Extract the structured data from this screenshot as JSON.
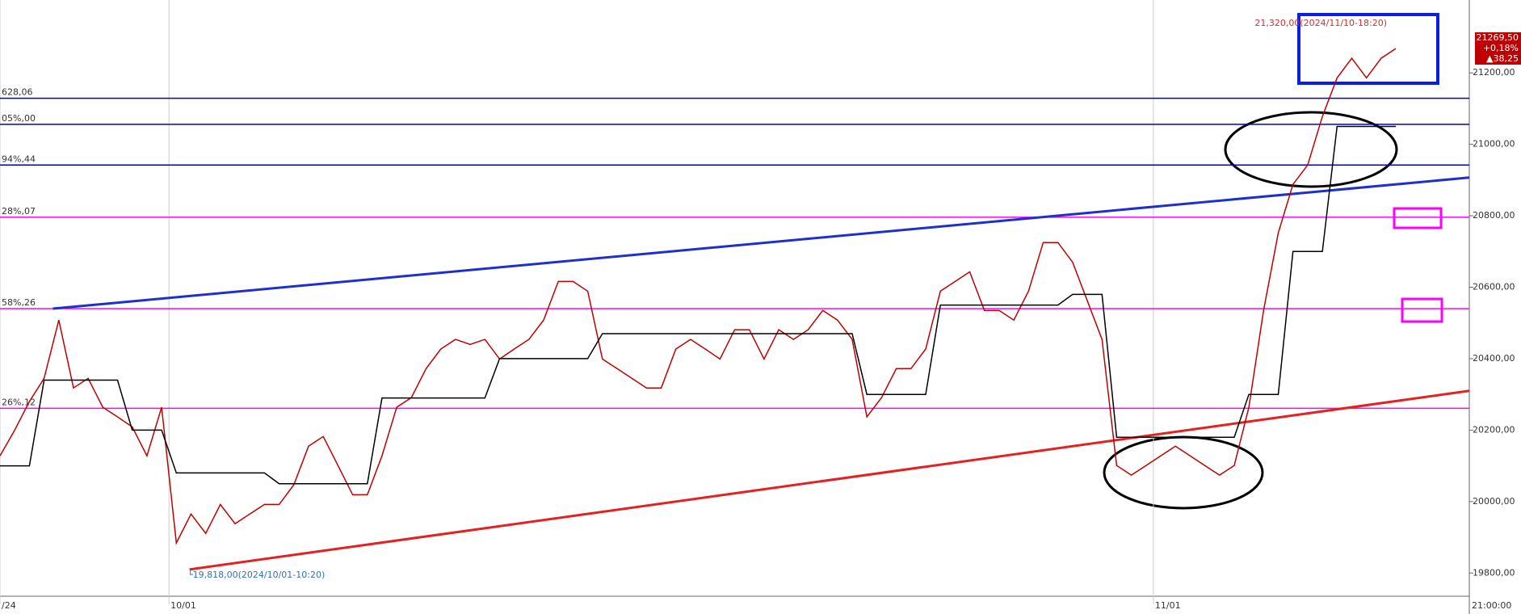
{
  "chart_data": {
    "type": "line",
    "series": [
      {
        "color": "#c00000",
        "values": [
          20128,
          20200,
          20280,
          20345,
          20508,
          20318,
          20345,
          20264,
          20237,
          20209,
          20128,
          20264,
          19884,
          19965,
          19911,
          19992,
          19938,
          19965,
          19992,
          19992,
          20047,
          20155,
          20182,
          20101,
          20019,
          20019,
          20128,
          20264,
          20291,
          20372,
          20427,
          20454,
          20440,
          20454,
          20399,
          20427,
          20454,
          20508,
          20616,
          20616,
          20589,
          20399,
          20372,
          20345,
          20318,
          20318,
          20427,
          20454,
          20427,
          20399,
          20481,
          20481,
          20399,
          20481,
          20454,
          20481,
          20535,
          20508,
          20454,
          20237,
          20291,
          20372,
          20372,
          20427,
          20589,
          20616,
          20643,
          20535,
          20535,
          20508,
          20589,
          20725,
          20725,
          20670,
          20562,
          20454,
          20101,
          20074,
          20101,
          20128,
          20155,
          20128,
          20101,
          20074,
          20101,
          20264,
          20535,
          20752,
          20888,
          20942,
          21078,
          21186,
          21241,
          21186,
          21241,
          21268
        ]
      },
      {
        "color": "#000000",
        "values": [
          20100,
          20100,
          20100,
          20340,
          20340,
          20340,
          20340,
          20340,
          20340,
          20200,
          20200,
          20200,
          20080,
          20080,
          20080,
          20080,
          20080,
          20080,
          20080,
          20050,
          20050,
          20050,
          20050,
          20050,
          20050,
          20050,
          20290,
          20290,
          20290,
          20290,
          20290,
          20290,
          20290,
          20290,
          20400,
          20400,
          20400,
          20400,
          20400,
          20400,
          20400,
          20470,
          20470,
          20470,
          20470,
          20470,
          20470,
          20470,
          20470,
          20470,
          20470,
          20470,
          20470,
          20470,
          20470,
          20470,
          20470,
          20470,
          20470,
          20300,
          20300,
          20300,
          20300,
          20300,
          20550,
          20550,
          20550,
          20550,
          20550,
          20550,
          20550,
          20550,
          20550,
          20580,
          20580,
          20580,
          20180,
          20180,
          20180,
          20180,
          20180,
          20180,
          20180,
          20180,
          20180,
          20300,
          20300,
          20300,
          20700,
          20700,
          20700,
          21050,
          21050,
          21050,
          21050,
          21050
        ]
      }
    ],
    "xlim": [
      0,
      100
    ],
    "xticks": [
      {
        "value": 0,
        "label": "/24"
      },
      {
        "value": 11.5,
        "label": "10/01"
      },
      {
        "value": 78.5,
        "label": "11/01"
      }
    ],
    "ylim": [
      19735,
      21404
    ],
    "yticks": [
      {
        "value": 19800,
        "label": "19800,00"
      },
      {
        "value": 20000,
        "label": "20000,00"
      },
      {
        "value": 20200,
        "label": "20200,00"
      },
      {
        "value": 20400,
        "label": "20400,00"
      },
      {
        "value": 20600,
        "label": "20600,00"
      },
      {
        "value": 20800,
        "label": "20800,00"
      },
      {
        "value": 21000,
        "label": "21000,00"
      },
      {
        "value": 21200,
        "label": "21200,00"
      }
    ],
    "x_end_label": "21:00:00",
    "levels": [
      {
        "value": 21129,
        "label": "628,06",
        "color": "#0000cc"
      },
      {
        "value": 21056,
        "label": "05%,00",
        "color": "#0000cc"
      },
      {
        "value": 20942,
        "label": "94%,44",
        "color": "#0000cc"
      },
      {
        "value": 20796,
        "label": "28%,07",
        "color": "#ff00ff"
      },
      {
        "value": 20540,
        "label": "58%,26",
        "color": "#ff00ff"
      },
      {
        "value": 20261,
        "label": "26%,12",
        "color": "#ff00ff"
      }
    ],
    "trendlines": [
      {
        "x": [
          3.6,
          100
        ],
        "values": [
          20540,
          20907
        ],
        "color": "#1f2fcf"
      },
      {
        "x": [
          12.9,
          100
        ],
        "values": [
          19810,
          20310
        ],
        "color": "#e52020"
      }
    ],
    "annotations": {
      "high": "21,320,00(2024/11/10-18:20)",
      "low": "└19,818,00(2024/10/01-10:20)"
    },
    "last_price": [
      "21269,50",
      "+0,18%",
      "▲38,25"
    ]
  }
}
